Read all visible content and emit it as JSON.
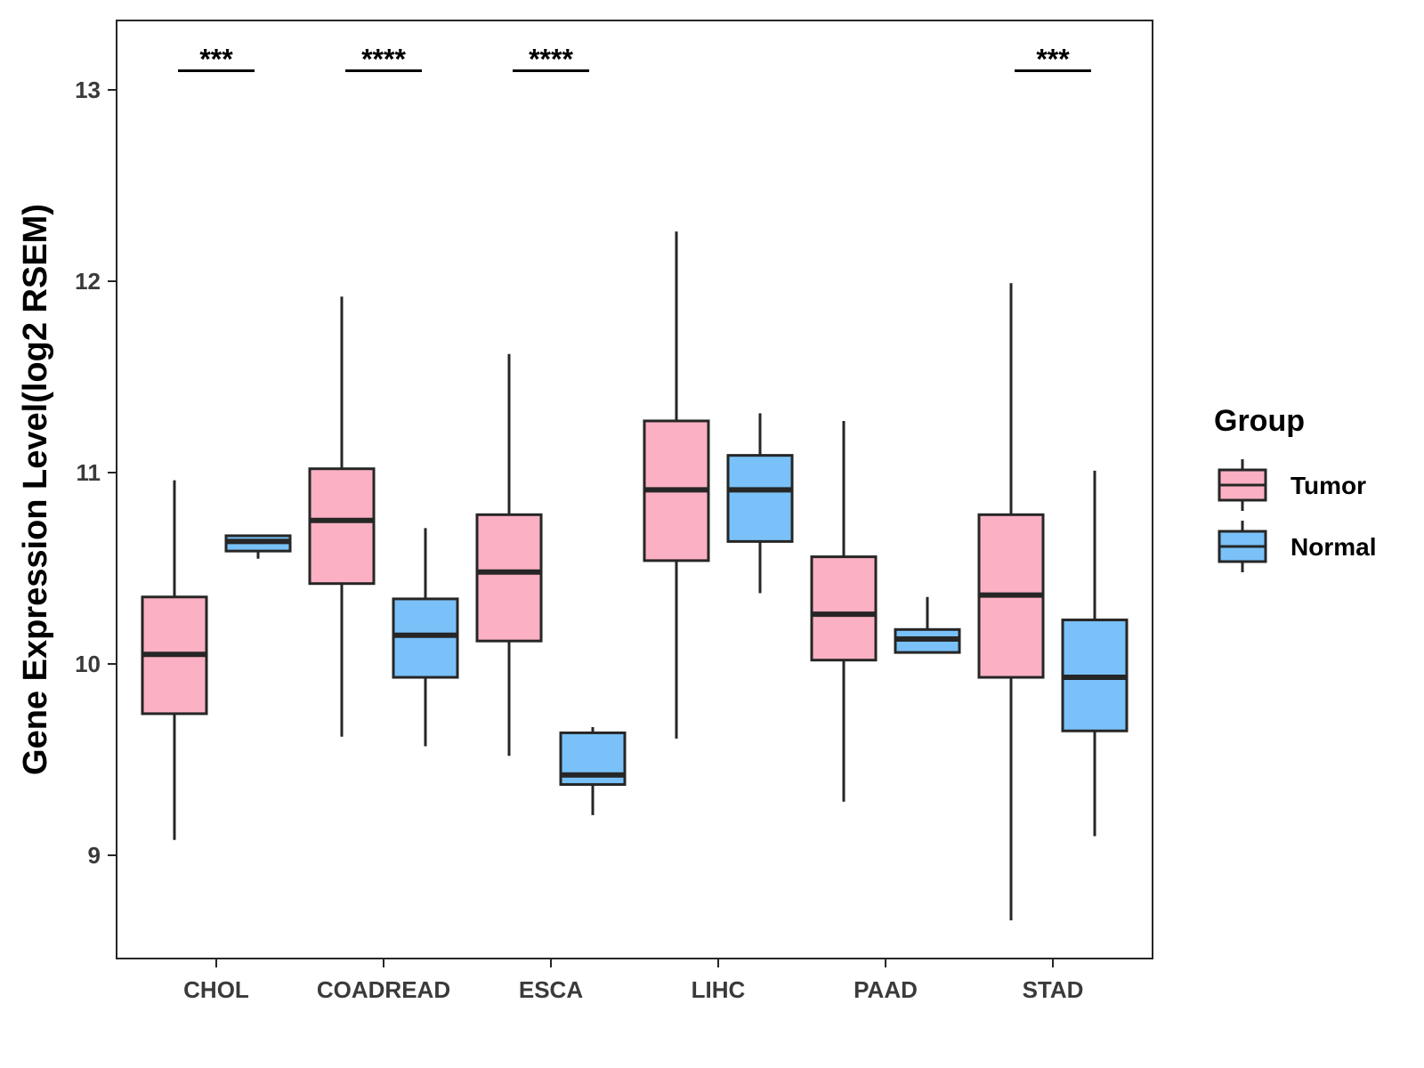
{
  "chart_data": {
    "type": "box",
    "title": "",
    "xlabel": "",
    "ylabel": "Gene Expression Level(log2 RSEM)",
    "ylim": [
      8.5,
      13.35
    ],
    "yticks": [
      9,
      10,
      11,
      12,
      13
    ],
    "categories": [
      "CHOL",
      "COADREAD",
      "ESCA",
      "LIHC",
      "PAAD",
      "STAD"
    ],
    "legend": {
      "title": "Group",
      "position": "right",
      "entries": [
        "Tumor",
        "Normal"
      ]
    },
    "colors": {
      "Tumor": "#FBB1C3",
      "Normal": "#79C1F8",
      "outline": "#262626"
    },
    "series": [
      {
        "name": "Tumor",
        "boxes": [
          {
            "min": 9.08,
            "q1": 9.74,
            "median": 10.05,
            "q3": 10.35,
            "max": 10.96
          },
          {
            "min": 9.62,
            "q1": 10.42,
            "median": 10.75,
            "q3": 11.02,
            "max": 11.92
          },
          {
            "min": 9.52,
            "q1": 10.12,
            "median": 10.48,
            "q3": 10.78,
            "max": 11.62
          },
          {
            "min": 9.61,
            "q1": 10.54,
            "median": 10.91,
            "q3": 11.27,
            "max": 12.26
          },
          {
            "min": 9.28,
            "q1": 10.02,
            "median": 10.26,
            "q3": 10.56,
            "max": 11.27
          },
          {
            "min": 8.66,
            "q1": 9.93,
            "median": 10.36,
            "q3": 10.78,
            "max": 11.99
          }
        ]
      },
      {
        "name": "Normal",
        "boxes": [
          {
            "min": 10.55,
            "q1": 10.59,
            "median": 10.64,
            "q3": 10.67,
            "max": 10.67
          },
          {
            "min": 9.57,
            "q1": 9.93,
            "median": 10.15,
            "q3": 10.34,
            "max": 10.71
          },
          {
            "min": 9.21,
            "q1": 9.37,
            "median": 9.42,
            "q3": 9.64,
            "max": 9.67
          },
          {
            "min": 10.37,
            "q1": 10.64,
            "median": 10.91,
            "q3": 11.09,
            "max": 11.31
          },
          {
            "min": 10.06,
            "q1": 10.06,
            "median": 10.13,
            "q3": 10.18,
            "max": 10.35
          },
          {
            "min": 9.1,
            "q1": 9.65,
            "median": 9.93,
            "q3": 10.23,
            "max": 11.01
          }
        ]
      }
    ],
    "significance": [
      {
        "category": "CHOL",
        "label": "***",
        "y": 13.1
      },
      {
        "category": "COADREAD",
        "label": "****",
        "y": 13.1
      },
      {
        "category": "ESCA",
        "label": "****",
        "y": 13.1
      },
      {
        "category": "STAD",
        "label": "***",
        "y": 13.1
      }
    ]
  }
}
